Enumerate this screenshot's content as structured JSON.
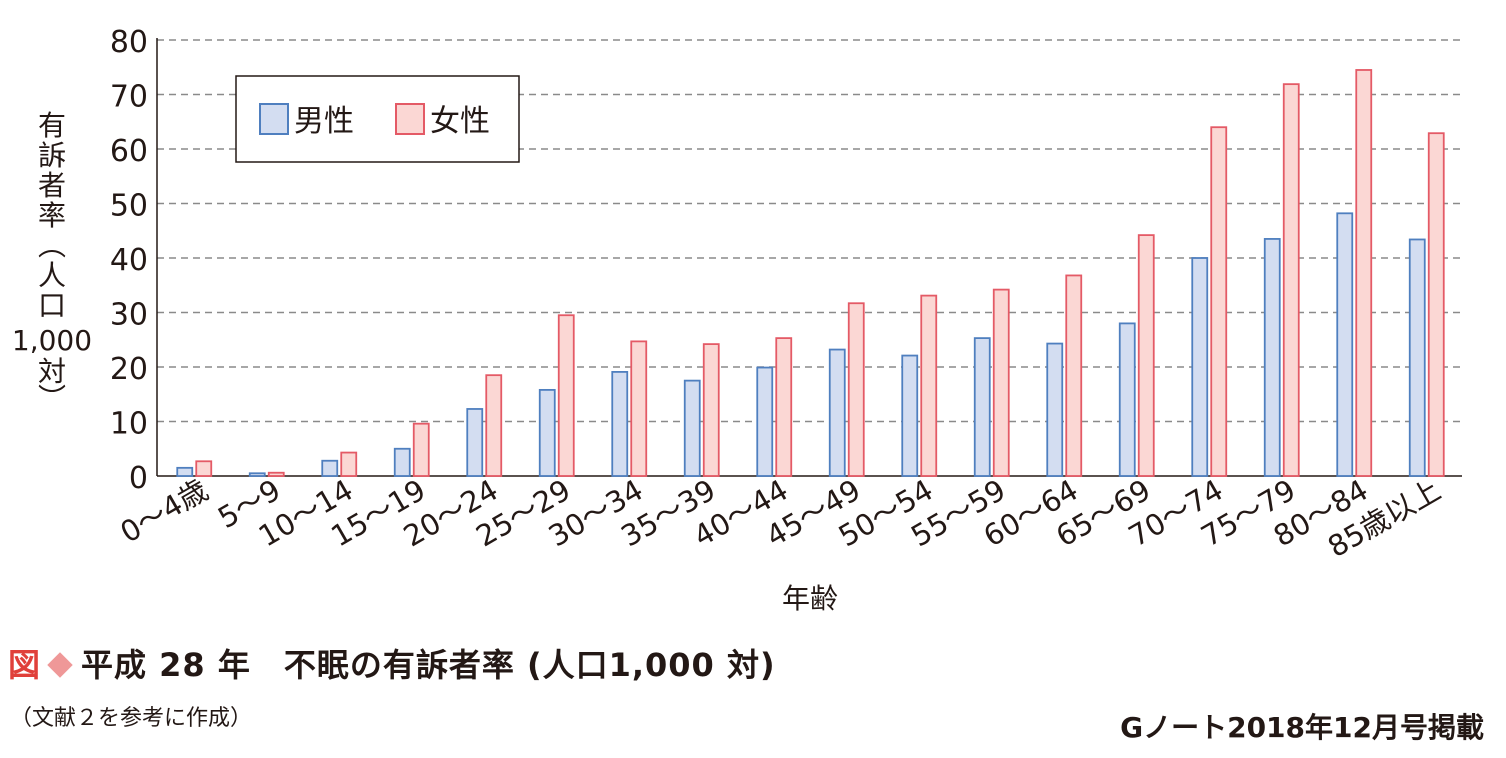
{
  "chart_data": {
    "type": "bar",
    "ylabel": "有訴者率（人口1,000対）",
    "ylabel_lines": [
      "有",
      "訴",
      "者",
      "率",
      "︵",
      "人",
      "口",
      "1,000",
      "対",
      "︶"
    ],
    "xlabel": "年齢",
    "ylim": [
      0,
      80
    ],
    "yticks": [
      "0",
      "10",
      "20",
      "30",
      "40",
      "50",
      "60",
      "70",
      "80"
    ],
    "grid": "horizontal dashed",
    "legend_position": "top-left",
    "categories": [
      "0～4歳",
      "5～9",
      "10～14",
      "15～19",
      "20～24",
      "25～29",
      "30～34",
      "35～39",
      "40～44",
      "45～49",
      "50～54",
      "55～59",
      "60～64",
      "65～69",
      "70～74",
      "75～79",
      "80～84",
      "85歳以上"
    ],
    "series": [
      {
        "name": "男性",
        "fill": "#d3ddf1",
        "stroke": "#4f7fbf",
        "values": [
          1.5,
          0.5,
          2.8,
          5.0,
          12.3,
          15.8,
          19.1,
          17.5,
          19.9,
          23.2,
          22.1,
          25.3,
          24.3,
          28.0,
          40.0,
          43.5,
          48.2,
          43.4
        ]
      },
      {
        "name": "女性",
        "fill": "#fbd7d4",
        "stroke": "#e45a66",
        "values": [
          2.7,
          0.6,
          4.3,
          9.6,
          18.5,
          29.5,
          24.7,
          24.2,
          25.3,
          31.7,
          33.1,
          34.2,
          36.8,
          44.2,
          64.0,
          71.9,
          74.5,
          62.9
        ]
      }
    ]
  },
  "caption": {
    "fig_label": "図",
    "text": "平成 28 年　不眠の有訴者率 (人口1,000 対)"
  },
  "source": "（文献２を参考に作成）",
  "publication": "Gノート2018年12月号掲載"
}
